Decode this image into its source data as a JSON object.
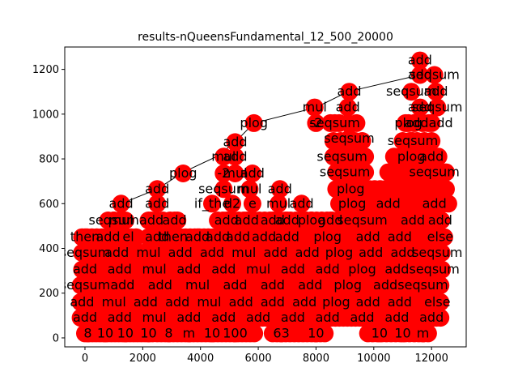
{
  "chart_data": {
    "type": "scatter",
    "title": "results-nQueensFundamental_12_500_20000",
    "xlabel": "",
    "ylabel": "",
    "xlim": [
      -700,
      13200
    ],
    "ylim": [
      -40,
      1300
    ],
    "xticks": [
      0,
      2000,
      4000,
      6000,
      8000,
      10000,
      12000
    ],
    "yticks": [
      0,
      200,
      400,
      600,
      800,
      1000,
      1200
    ],
    "marker_color": "#ff0000",
    "edge_color": "#000000",
    "grid": false,
    "legend": "none",
    "edges_visible": [
      [
        [
          1250,
          600
        ],
        [
          2500,
          665
        ],
        [
          3400,
          740
        ],
        [
          4550,
          810
        ],
        [
          5200,
          875
        ],
        [
          5850,
          960
        ],
        [
          8000,
          1030
        ],
        [
          9100,
          1100
        ],
        [
          11600,
          1175
        ],
        [
          12100,
          1175
        ]
      ],
      [
        [
          11600,
          1245
        ],
        [
          11600,
          1175
        ]
      ]
    ],
    "labelled_nodes": [
      {
        "x": 11600,
        "y": 1240,
        "label": "add"
      },
      {
        "x": 11600,
        "y": 1175,
        "label": "add"
      },
      {
        "x": 12100,
        "y": 1175,
        "label": "seqsum"
      },
      {
        "x": 9150,
        "y": 1100,
        "label": "add"
      },
      {
        "x": 11300,
        "y": 1100,
        "label": "seqsum"
      },
      {
        "x": 12150,
        "y": 1100,
        "label": "add"
      },
      {
        "x": 7950,
        "y": 1030,
        "label": "mul"
      },
      {
        "x": 9100,
        "y": 1030,
        "label": "add"
      },
      {
        "x": 11600,
        "y": 1030,
        "label": "add"
      },
      {
        "x": 12200,
        "y": 1030,
        "label": "seqsum"
      },
      {
        "x": 8000,
        "y": 960,
        "label": "-2"
      },
      {
        "x": 8650,
        "y": 960,
        "label": "seqsum"
      },
      {
        "x": 5850,
        "y": 960,
        "label": "plog"
      },
      {
        "x": 11200,
        "y": 960,
        "label": "plog"
      },
      {
        "x": 11900,
        "y": 960,
        "label": "addadd"
      },
      {
        "x": 9150,
        "y": 890,
        "label": "seqsum"
      },
      {
        "x": 5200,
        "y": 875,
        "label": "add"
      },
      {
        "x": 11350,
        "y": 880,
        "label": "seqsum"
      },
      {
        "x": 4800,
        "y": 810,
        "label": "mul"
      },
      {
        "x": 5200,
        "y": 810,
        "label": "add"
      },
      {
        "x": 8900,
        "y": 810,
        "label": "seqsum"
      },
      {
        "x": 11300,
        "y": 810,
        "label": "plog"
      },
      {
        "x": 12000,
        "y": 810,
        "label": "add"
      },
      {
        "x": 3400,
        "y": 735,
        "label": "plog"
      },
      {
        "x": 4800,
        "y": 735,
        "label": "-2"
      },
      {
        "x": 5200,
        "y": 735,
        "label": "mul"
      },
      {
        "x": 5800,
        "y": 735,
        "label": "add"
      },
      {
        "x": 9000,
        "y": 740,
        "label": "seqsum"
      },
      {
        "x": 12100,
        "y": 740,
        "label": "seqsum"
      },
      {
        "x": 2500,
        "y": 665,
        "label": "add"
      },
      {
        "x": 4800,
        "y": 665,
        "label": "seqsum"
      },
      {
        "x": 5700,
        "y": 665,
        "label": "mul"
      },
      {
        "x": 6750,
        "y": 665,
        "label": "add"
      },
      {
        "x": 9200,
        "y": 665,
        "label": "plog"
      },
      {
        "x": 1250,
        "y": 600,
        "label": "add"
      },
      {
        "x": 2500,
        "y": 600,
        "label": "add"
      },
      {
        "x": 4400,
        "y": 600,
        "label": "if_the"
      },
      {
        "x": 5100,
        "y": 600,
        "label": "d2"
      },
      {
        "x": 5800,
        "y": 600,
        "label": "e"
      },
      {
        "x": 6700,
        "y": 600,
        "label": "mul"
      },
      {
        "x": 7500,
        "y": 600,
        "label": "add"
      },
      {
        "x": 9250,
        "y": 600,
        "label": "plog"
      },
      {
        "x": 10500,
        "y": 600,
        "label": "add"
      },
      {
        "x": 12100,
        "y": 600,
        "label": "add"
      },
      {
        "x": 1000,
        "y": 525,
        "label": "seqsum"
      },
      {
        "x": 1250,
        "y": 525,
        "label": "mul"
      },
      {
        "x": 2300,
        "y": 525,
        "label": "add"
      },
      {
        "x": 3100,
        "y": 525,
        "label": "add"
      },
      {
        "x": 4900,
        "y": 525,
        "label": "add"
      },
      {
        "x": 5600,
        "y": 525,
        "label": "add"
      },
      {
        "x": 6500,
        "y": 525,
        "label": "add"
      },
      {
        "x": 7000,
        "y": 525,
        "label": "add"
      },
      {
        "x": 7850,
        "y": 525,
        "label": "plog"
      },
      {
        "x": 8500,
        "y": 525,
        "label": "add"
      },
      {
        "x": 9600,
        "y": 525,
        "label": "seqsum"
      },
      {
        "x": 11350,
        "y": 525,
        "label": "add"
      },
      {
        "x": 12300,
        "y": 525,
        "label": "add"
      },
      {
        "x": 0,
        "y": 450,
        "label": "then"
      },
      {
        "x": 800,
        "y": 450,
        "label": "add"
      },
      {
        "x": 1500,
        "y": 450,
        "label": "el"
      },
      {
        "x": 2500,
        "y": 450,
        "label": "add"
      },
      {
        "x": 3050,
        "y": 450,
        "label": "then"
      },
      {
        "x": 3900,
        "y": 450,
        "label": "add"
      },
      {
        "x": 4600,
        "y": 450,
        "label": "add"
      },
      {
        "x": 5300,
        "y": 450,
        "label": "add"
      },
      {
        "x": 6200,
        "y": 450,
        "label": "add"
      },
      {
        "x": 7000,
        "y": 450,
        "label": "add"
      },
      {
        "x": 8400,
        "y": 450,
        "label": "plog"
      },
      {
        "x": 9800,
        "y": 450,
        "label": "add"
      },
      {
        "x": 10900,
        "y": 450,
        "label": "add"
      },
      {
        "x": 12300,
        "y": 450,
        "label": "else"
      },
      {
        "x": 0,
        "y": 380,
        "label": "seqsum"
      },
      {
        "x": 1100,
        "y": 380,
        "label": "add"
      },
      {
        "x": 2200,
        "y": 380,
        "label": "mul"
      },
      {
        "x": 3300,
        "y": 380,
        "label": "add"
      },
      {
        "x": 4400,
        "y": 380,
        "label": "add"
      },
      {
        "x": 5500,
        "y": 380,
        "label": "mul"
      },
      {
        "x": 6600,
        "y": 380,
        "label": "add"
      },
      {
        "x": 7700,
        "y": 380,
        "label": "add"
      },
      {
        "x": 8800,
        "y": 380,
        "label": "plog"
      },
      {
        "x": 9900,
        "y": 380,
        "label": "add"
      },
      {
        "x": 11000,
        "y": 380,
        "label": "add"
      },
      {
        "x": 12200,
        "y": 380,
        "label": "seqsum"
      },
      {
        "x": 0,
        "y": 305,
        "label": "add"
      },
      {
        "x": 1200,
        "y": 305,
        "label": "add"
      },
      {
        "x": 2400,
        "y": 305,
        "label": "mul"
      },
      {
        "x": 3600,
        "y": 305,
        "label": "add"
      },
      {
        "x": 4800,
        "y": 305,
        "label": "add"
      },
      {
        "x": 6000,
        "y": 305,
        "label": "mul"
      },
      {
        "x": 7200,
        "y": 305,
        "label": "add"
      },
      {
        "x": 8400,
        "y": 305,
        "label": "add"
      },
      {
        "x": 9600,
        "y": 305,
        "label": "plog"
      },
      {
        "x": 10800,
        "y": 305,
        "label": "add"
      },
      {
        "x": 12100,
        "y": 305,
        "label": "seqsum"
      },
      {
        "x": 0,
        "y": 235,
        "label": "seqsum"
      },
      {
        "x": 1300,
        "y": 235,
        "label": "add"
      },
      {
        "x": 2600,
        "y": 235,
        "label": "add"
      },
      {
        "x": 3900,
        "y": 235,
        "label": "mul"
      },
      {
        "x": 5200,
        "y": 235,
        "label": "add"
      },
      {
        "x": 6500,
        "y": 235,
        "label": "add"
      },
      {
        "x": 7800,
        "y": 235,
        "label": "add"
      },
      {
        "x": 9100,
        "y": 235,
        "label": "plog"
      },
      {
        "x": 10400,
        "y": 235,
        "label": "add"
      },
      {
        "x": 11700,
        "y": 235,
        "label": "seqsum"
      },
      {
        "x": -100,
        "y": 160,
        "label": "add"
      },
      {
        "x": 1000,
        "y": 160,
        "label": "mul"
      },
      {
        "x": 2100,
        "y": 160,
        "label": "add"
      },
      {
        "x": 3200,
        "y": 160,
        "label": "add"
      },
      {
        "x": 4300,
        "y": 160,
        "label": "mul"
      },
      {
        "x": 5400,
        "y": 160,
        "label": "add"
      },
      {
        "x": 6500,
        "y": 160,
        "label": "add"
      },
      {
        "x": 7600,
        "y": 160,
        "label": "add"
      },
      {
        "x": 8700,
        "y": 160,
        "label": "plog"
      },
      {
        "x": 9800,
        "y": 160,
        "label": "add"
      },
      {
        "x": 10900,
        "y": 160,
        "label": "add"
      },
      {
        "x": 12200,
        "y": 160,
        "label": "else"
      },
      {
        "x": 0,
        "y": 90,
        "label": "add"
      },
      {
        "x": 1200,
        "y": 90,
        "label": "add"
      },
      {
        "x": 2400,
        "y": 90,
        "label": "mul"
      },
      {
        "x": 3600,
        "y": 90,
        "label": "add"
      },
      {
        "x": 4800,
        "y": 90,
        "label": "add"
      },
      {
        "x": 6000,
        "y": 90,
        "label": "add"
      },
      {
        "x": 7200,
        "y": 90,
        "label": "add"
      },
      {
        "x": 8400,
        "y": 90,
        "label": "add"
      },
      {
        "x": 9600,
        "y": 90,
        "label": "add"
      },
      {
        "x": 10800,
        "y": 90,
        "label": "add"
      },
      {
        "x": 12000,
        "y": 90,
        "label": "add"
      },
      {
        "x": 100,
        "y": 20,
        "label": "8"
      },
      {
        "x": 700,
        "y": 20,
        "label": "10"
      },
      {
        "x": 1400,
        "y": 20,
        "label": "10"
      },
      {
        "x": 2200,
        "y": 20,
        "label": "10"
      },
      {
        "x": 2900,
        "y": 20,
        "label": "8"
      },
      {
        "x": 3600,
        "y": 20,
        "label": "m"
      },
      {
        "x": 4400,
        "y": 20,
        "label": "10"
      },
      {
        "x": 5200,
        "y": 20,
        "label": "100"
      },
      {
        "x": 6800,
        "y": 20,
        "label": "63"
      },
      {
        "x": 8000,
        "y": 20,
        "label": "10"
      },
      {
        "x": 10200,
        "y": 20,
        "label": "10"
      },
      {
        "x": 11000,
        "y": 20,
        "label": "10"
      },
      {
        "x": 11700,
        "y": 20,
        "label": "m"
      }
    ],
    "fill_rows": [
      {
        "y": 20,
        "x_start": 0,
        "x_end": 2400,
        "step": 130
      },
      {
        "y": 20,
        "x_start": 2500,
        "x_end": 5900,
        "step": 140
      },
      {
        "y": 20,
        "x_start": 6500,
        "x_end": 8300,
        "step": 150
      },
      {
        "y": 20,
        "x_start": 9800,
        "x_end": 12000,
        "step": 160
      },
      {
        "y": 90,
        "x_start": -150,
        "x_end": 12400,
        "step": 140
      },
      {
        "y": 160,
        "x_start": -150,
        "x_end": 12400,
        "step": 140
      },
      {
        "y": 235,
        "x_start": -150,
        "x_end": 12400,
        "step": 140
      },
      {
        "y": 305,
        "x_start": -100,
        "x_end": 12400,
        "step": 140
      },
      {
        "y": 380,
        "x_start": -100,
        "x_end": 12400,
        "step": 150
      },
      {
        "y": 450,
        "x_start": -100,
        "x_end": 1800,
        "step": 170
      },
      {
        "y": 450,
        "x_start": 2200,
        "x_end": 12500,
        "step": 160
      },
      {
        "y": 525,
        "x_start": 800,
        "x_end": 1500,
        "step": 200
      },
      {
        "y": 525,
        "x_start": 2200,
        "x_end": 3300,
        "step": 250
      },
      {
        "y": 525,
        "x_start": 4600,
        "x_end": 12500,
        "step": 180
      },
      {
        "y": 600,
        "x_start": 8800,
        "x_end": 12600,
        "step": 180
      },
      {
        "y": 665,
        "x_start": 8700,
        "x_end": 12600,
        "step": 190
      },
      {
        "y": 740,
        "x_start": 8700,
        "x_end": 9800,
        "step": 200
      },
      {
        "y": 740,
        "x_start": 10500,
        "x_end": 12600,
        "step": 200
      },
      {
        "y": 810,
        "x_start": 8600,
        "x_end": 9800,
        "step": 220
      },
      {
        "y": 810,
        "x_start": 10700,
        "x_end": 12300,
        "step": 220
      },
      {
        "y": 880,
        "x_start": 8600,
        "x_end": 9700,
        "step": 250
      },
      {
        "y": 880,
        "x_start": 11000,
        "x_end": 12200,
        "step": 250
      },
      {
        "y": 960,
        "x_start": 8500,
        "x_end": 9400,
        "step": 300
      },
      {
        "y": 960,
        "x_start": 11100,
        "x_end": 12200,
        "step": 300
      }
    ]
  }
}
